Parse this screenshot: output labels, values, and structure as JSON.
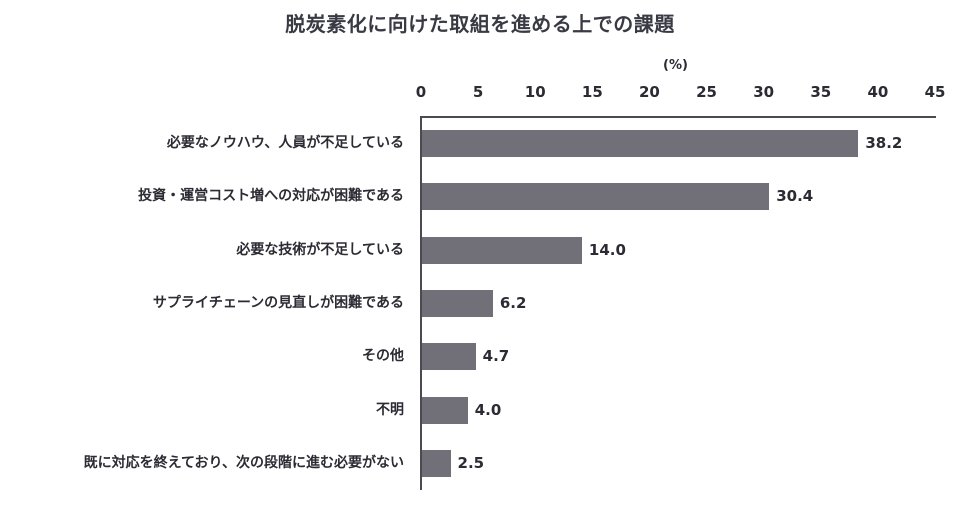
{
  "chart_data": {
    "type": "bar",
    "orientation": "horizontal",
    "title": "脱炭素化に向けた取組を進める上での課題",
    "xlabel": "(%)",
    "ylabel": "",
    "xlim": [
      0,
      45
    ],
    "ticks": [
      "0",
      "5",
      "10",
      "15",
      "20",
      "25",
      "30",
      "35",
      "40",
      "45"
    ],
    "grid": false,
    "legend": null,
    "bar_color": "#717079",
    "categories": [
      "必要なノウハウ、人員が不足している",
      "投資・運営コスト増への対応が困難である",
      "必要な技術が不足している",
      "サプライチェーンの見直しが困難である",
      "その他",
      "不明",
      "既に対応を終えており、次の段階に進む必要がない"
    ],
    "values": [
      38.2,
      30.4,
      14.0,
      6.2,
      4.7,
      4.0,
      2.5
    ],
    "value_labels": [
      "38.2",
      "30.4",
      "14.0",
      "6.2",
      "4.7",
      "4.0",
      "2.5"
    ]
  }
}
